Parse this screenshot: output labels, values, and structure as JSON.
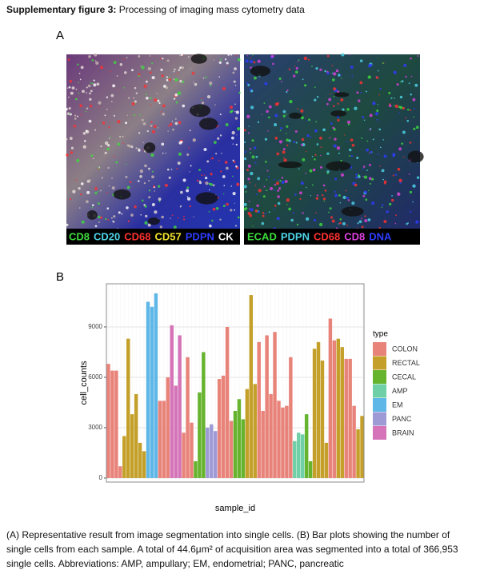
{
  "header": {
    "label": "Supplementary figure 3:",
    "title": "Processing of imaging mass cytometry data"
  },
  "panel_a": {
    "label": "A",
    "images": [
      {
        "markers": [
          {
            "text": "CD8",
            "color": "#3ddc3d"
          },
          {
            "text": "CD20",
            "color": "#4fd6e8"
          },
          {
            "text": "CD68",
            "color": "#ff3030"
          },
          {
            "text": "CD57",
            "color": "#f2e12c"
          },
          {
            "text": "PDPN",
            "color": "#2d3cff"
          },
          {
            "text": "CK",
            "color": "#ffffff"
          }
        ]
      },
      {
        "markers": [
          {
            "text": "ECAD",
            "color": "#3ddc3d"
          },
          {
            "text": "PDPN",
            "color": "#4fd6e8"
          },
          {
            "text": "CD68",
            "color": "#ff3030"
          },
          {
            "text": "CD8",
            "color": "#e040e0"
          },
          {
            "text": "DNA",
            "color": "#2d3cff"
          }
        ]
      }
    ]
  },
  "chart_data": {
    "type": "bar",
    "panel_label": "B",
    "x_label": "sample_id",
    "y_label": "cell_counts",
    "categories": [
      null,
      null,
      null,
      null,
      null,
      null,
      null,
      null,
      null,
      null,
      null,
      null,
      null,
      null,
      null,
      null,
      null,
      null,
      null,
      null,
      null,
      null,
      null,
      null,
      null,
      null,
      null,
      null,
      null,
      null,
      null,
      null,
      null,
      null,
      null,
      null,
      null,
      null,
      null,
      null,
      null,
      null,
      null,
      null,
      null,
      null,
      null,
      null,
      null,
      null,
      null,
      null,
      null,
      null,
      null,
      null,
      null,
      null,
      null,
      null,
      null,
      null,
      null,
      null,
      null
    ],
    "values": [
      6800,
      6400,
      6400,
      700,
      2500,
      8300,
      3800,
      5000,
      2100,
      1600,
      10500,
      10200,
      11000,
      4600,
      4600,
      6000,
      9100,
      5500,
      8500,
      2700,
      7200,
      3300,
      1000,
      5100,
      7500,
      3000,
      3200,
      2800,
      5900,
      6100,
      9000,
      3400,
      4000,
      4700,
      3500,
      5300,
      10900,
      5600,
      8100,
      4000,
      8500,
      5000,
      8700,
      4600,
      4200,
      4300,
      7200,
      2200,
      2700,
      2600,
      3800,
      1000,
      7700,
      8100,
      7000,
      2100,
      9500,
      8200,
      8300,
      7800,
      7100,
      7100,
      4300,
      2900,
      3700
    ],
    "types": [
      "COLON",
      "COLON",
      "COLON",
      "COLON",
      "RECTAL",
      "RECTAL",
      "RECTAL",
      "RECTAL",
      "RECTAL",
      "RECTAL",
      "EM",
      "EM",
      "EM",
      "COLON",
      "COLON",
      "COLON",
      "BRAIN",
      "BRAIN",
      "BRAIN",
      "COLON",
      "COLON",
      "COLON",
      "CECAL",
      "CECAL",
      "CECAL",
      "PANC",
      "PANC",
      "PANC",
      "COLON",
      "COLON",
      "COLON",
      "COLON",
      "CECAL",
      "CECAL",
      "CECAL",
      "RECTAL",
      "RECTAL",
      "RECTAL",
      "COLON",
      "COLON",
      "COLON",
      "COLON",
      "COLON",
      "COLON",
      "COLON",
      "COLON",
      "COLON",
      "AMP",
      "AMP",
      "AMP",
      "CECAL",
      "CECAL",
      "RECTAL",
      "RECTAL",
      "RECTAL",
      "RECTAL",
      "COLON",
      "COLON",
      "RECTAL",
      "RECTAL",
      "COLON",
      "COLON",
      "COLON",
      "RECTAL",
      "RECTAL"
    ],
    "legend": {
      "title": "type",
      "items": [
        {
          "name": "COLON",
          "color": "#e8837a"
        },
        {
          "name": "RECTAL",
          "color": "#c4a02a"
        },
        {
          "name": "CECAL",
          "color": "#66b32e"
        },
        {
          "name": "AMP",
          "color": "#6fcfa6"
        },
        {
          "name": "EM",
          "color": "#5fb7e8"
        },
        {
          "name": "PANC",
          "color": "#9e9ad6"
        },
        {
          "name": "BRAIN",
          "color": "#d574b8"
        }
      ]
    },
    "ylim": [
      -240,
      11570
    ],
    "yticks": [
      0,
      3000,
      6000,
      9000
    ],
    "grid": true
  },
  "caption": "(A) Representative result from image segmentation into single cells. (B) Bar plots showing the number of single cells from each sample. A total of 44.6μm² of acquisition area was segmented into a total of 366,953 single cells. Abbreviations: AMP, ampullary; EM, endometrial; PANC, pancreatic"
}
